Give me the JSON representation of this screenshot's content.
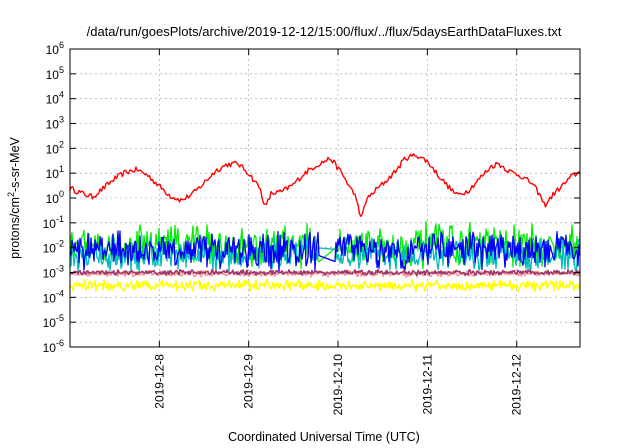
{
  "chart_data": {
    "type": "line",
    "title": "/data/run/goesPlots/archive/2019-12-12/15:00/flux/../flux/5daysEarthDataFluxes.txt",
    "xlabel": "Coordinated Universal Time (UTC)",
    "ylabel": "protons/cm²-s-sr-MeV",
    "ylabel_parts": {
      "base": "protons/cm",
      "sup": "2",
      "rest": "-s-sr-MeV"
    },
    "y_scale": "log",
    "ylim": [
      1e-06,
      1000000.0
    ],
    "y_ticks": [
      {
        "value": 1e-06,
        "base": "10",
        "exp": "-6"
      },
      {
        "value": 1e-05,
        "base": "10",
        "exp": "-5"
      },
      {
        "value": 0.0001,
        "base": "10",
        "exp": "-4"
      },
      {
        "value": 0.001,
        "base": "10",
        "exp": "-3"
      },
      {
        "value": 0.01,
        "base": "10",
        "exp": "-2"
      },
      {
        "value": 0.1,
        "base": "10",
        "exp": "-1"
      },
      {
        "value": 1,
        "base": "10",
        "exp": "0"
      },
      {
        "value": 10,
        "base": "10",
        "exp": "1"
      },
      {
        "value": 100,
        "base": "10",
        "exp": "2"
      },
      {
        "value": 1000,
        "base": "10",
        "exp": "3"
      },
      {
        "value": 10000,
        "base": "10",
        "exp": "4"
      },
      {
        "value": 100000,
        "base": "10",
        "exp": "5"
      },
      {
        "value": 1000000,
        "base": "10",
        "exp": "6"
      }
    ],
    "x_range": [
      "2019-12-07T00:00",
      "2019-12-12T17:00"
    ],
    "x_ticks": [
      "2019-12-8",
      "2019-12-9",
      "2019-12-10",
      "2019-12-11",
      "2019-12-12"
    ],
    "x_tick_dates": [
      "2019-12-08T00:00",
      "2019-12-09T00:00",
      "2019-12-10T00:00",
      "2019-12-11T00:00",
      "2019-12-12T00:00"
    ],
    "grid": true,
    "legend": "none",
    "series": [
      {
        "color": "#ff0000",
        "style": "smooth",
        "points": [
          [
            "2019-12-07T00:00",
            2.5
          ],
          [
            "2019-12-07T03:00",
            1.6
          ],
          [
            "2019-12-07T06:00",
            1.1
          ],
          [
            "2019-12-07T09:00",
            2.5
          ],
          [
            "2019-12-07T12:00",
            6
          ],
          [
            "2019-12-07T15:00",
            11
          ],
          [
            "2019-12-07T18:00",
            14
          ],
          [
            "2019-12-07T21:00",
            8
          ],
          [
            "2019-12-08T00:00",
            3
          ],
          [
            "2019-12-08T03:00",
            1.2
          ],
          [
            "2019-12-08T06:00",
            0.8
          ],
          [
            "2019-12-08T09:00",
            1.5
          ],
          [
            "2019-12-08T12:00",
            4
          ],
          [
            "2019-12-08T15:00",
            12
          ],
          [
            "2019-12-08T18:00",
            22
          ],
          [
            "2019-12-08T21:00",
            25
          ],
          [
            "2019-12-09T00:00",
            10
          ],
          [
            "2019-12-09T03:00",
            2.5
          ],
          [
            "2019-12-09T04:30",
            0.4
          ],
          [
            "2019-12-09T06:00",
            1.5
          ],
          [
            "2019-12-09T09:00",
            1.8
          ],
          [
            "2019-12-09T12:00",
            3.5
          ],
          [
            "2019-12-09T15:00",
            10
          ],
          [
            "2019-12-09T18:00",
            20
          ],
          [
            "2019-12-09T22:00",
            40
          ],
          [
            "2019-12-10T01:00",
            10
          ],
          [
            "2019-12-10T03:00",
            3
          ],
          [
            "2019-12-10T05:00",
            1
          ],
          [
            "2019-12-10T06:00",
            0.12
          ],
          [
            "2019-12-10T07:30",
            0.8
          ],
          [
            "2019-12-10T10:00",
            2
          ],
          [
            "2019-12-10T13:00",
            5
          ],
          [
            "2019-12-10T16:00",
            15
          ],
          [
            "2019-12-10T18:00",
            40
          ],
          [
            "2019-12-10T21:00",
            55
          ],
          [
            "2019-12-11T00:00",
            30
          ],
          [
            "2019-12-11T03:00",
            8
          ],
          [
            "2019-12-11T06:00",
            2.5
          ],
          [
            "2019-12-11T08:00",
            1.3
          ],
          [
            "2019-12-11T11:00",
            2
          ],
          [
            "2019-12-11T14:00",
            6
          ],
          [
            "2019-12-11T17:00",
            18
          ],
          [
            "2019-12-11T19:00",
            25
          ],
          [
            "2019-12-11T22:00",
            12
          ],
          [
            "2019-12-12T01:00",
            8
          ],
          [
            "2019-12-12T04:00",
            4
          ],
          [
            "2019-12-12T06:00",
            1.5
          ],
          [
            "2019-12-12T07:30",
            0.5
          ],
          [
            "2019-12-12T10:00",
            1.5
          ],
          [
            "2019-12-12T13:00",
            4
          ],
          [
            "2019-12-12T15:00",
            8
          ],
          [
            "2019-12-12T17:00",
            11
          ]
        ]
      },
      {
        "color": "#00ee00",
        "style": "noisy",
        "level": 0.012,
        "spread_decades": 1.0,
        "gaps": [
          [
            "2019-12-09T19:00",
            "2019-12-09T23:00"
          ],
          [
            "2019-12-12T09:00",
            "2019-12-12T10:00"
          ]
        ]
      },
      {
        "color": "#00bcbc",
        "style": "noisy",
        "level": 0.005,
        "spread_decades": 0.8,
        "gaps": [
          [
            "2019-12-09T19:00",
            "2019-12-09T23:00"
          ],
          [
            "2019-12-12T09:00",
            "2019-12-12T10:00"
          ]
        ]
      },
      {
        "color": "#0000ff",
        "style": "noisy",
        "level": 0.008,
        "spread_decades": 0.9,
        "gaps": [
          [
            "2019-12-09T19:00",
            "2019-12-09T23:00"
          ],
          [
            "2019-12-12T09:00",
            "2019-12-12T10:00"
          ]
        ]
      },
      {
        "color": "#ffff00",
        "style": "noisy",
        "level": 0.0003,
        "spread_decades": 0.25,
        "gaps": []
      },
      {
        "color": "#ff9999",
        "style": "noisy",
        "level": 0.0009,
        "spread_decades": 0.15,
        "gaps": []
      },
      {
        "color": "#9b3a6e",
        "style": "noisy",
        "level": 0.001,
        "spread_decades": 0.12,
        "gaps": []
      }
    ]
  }
}
